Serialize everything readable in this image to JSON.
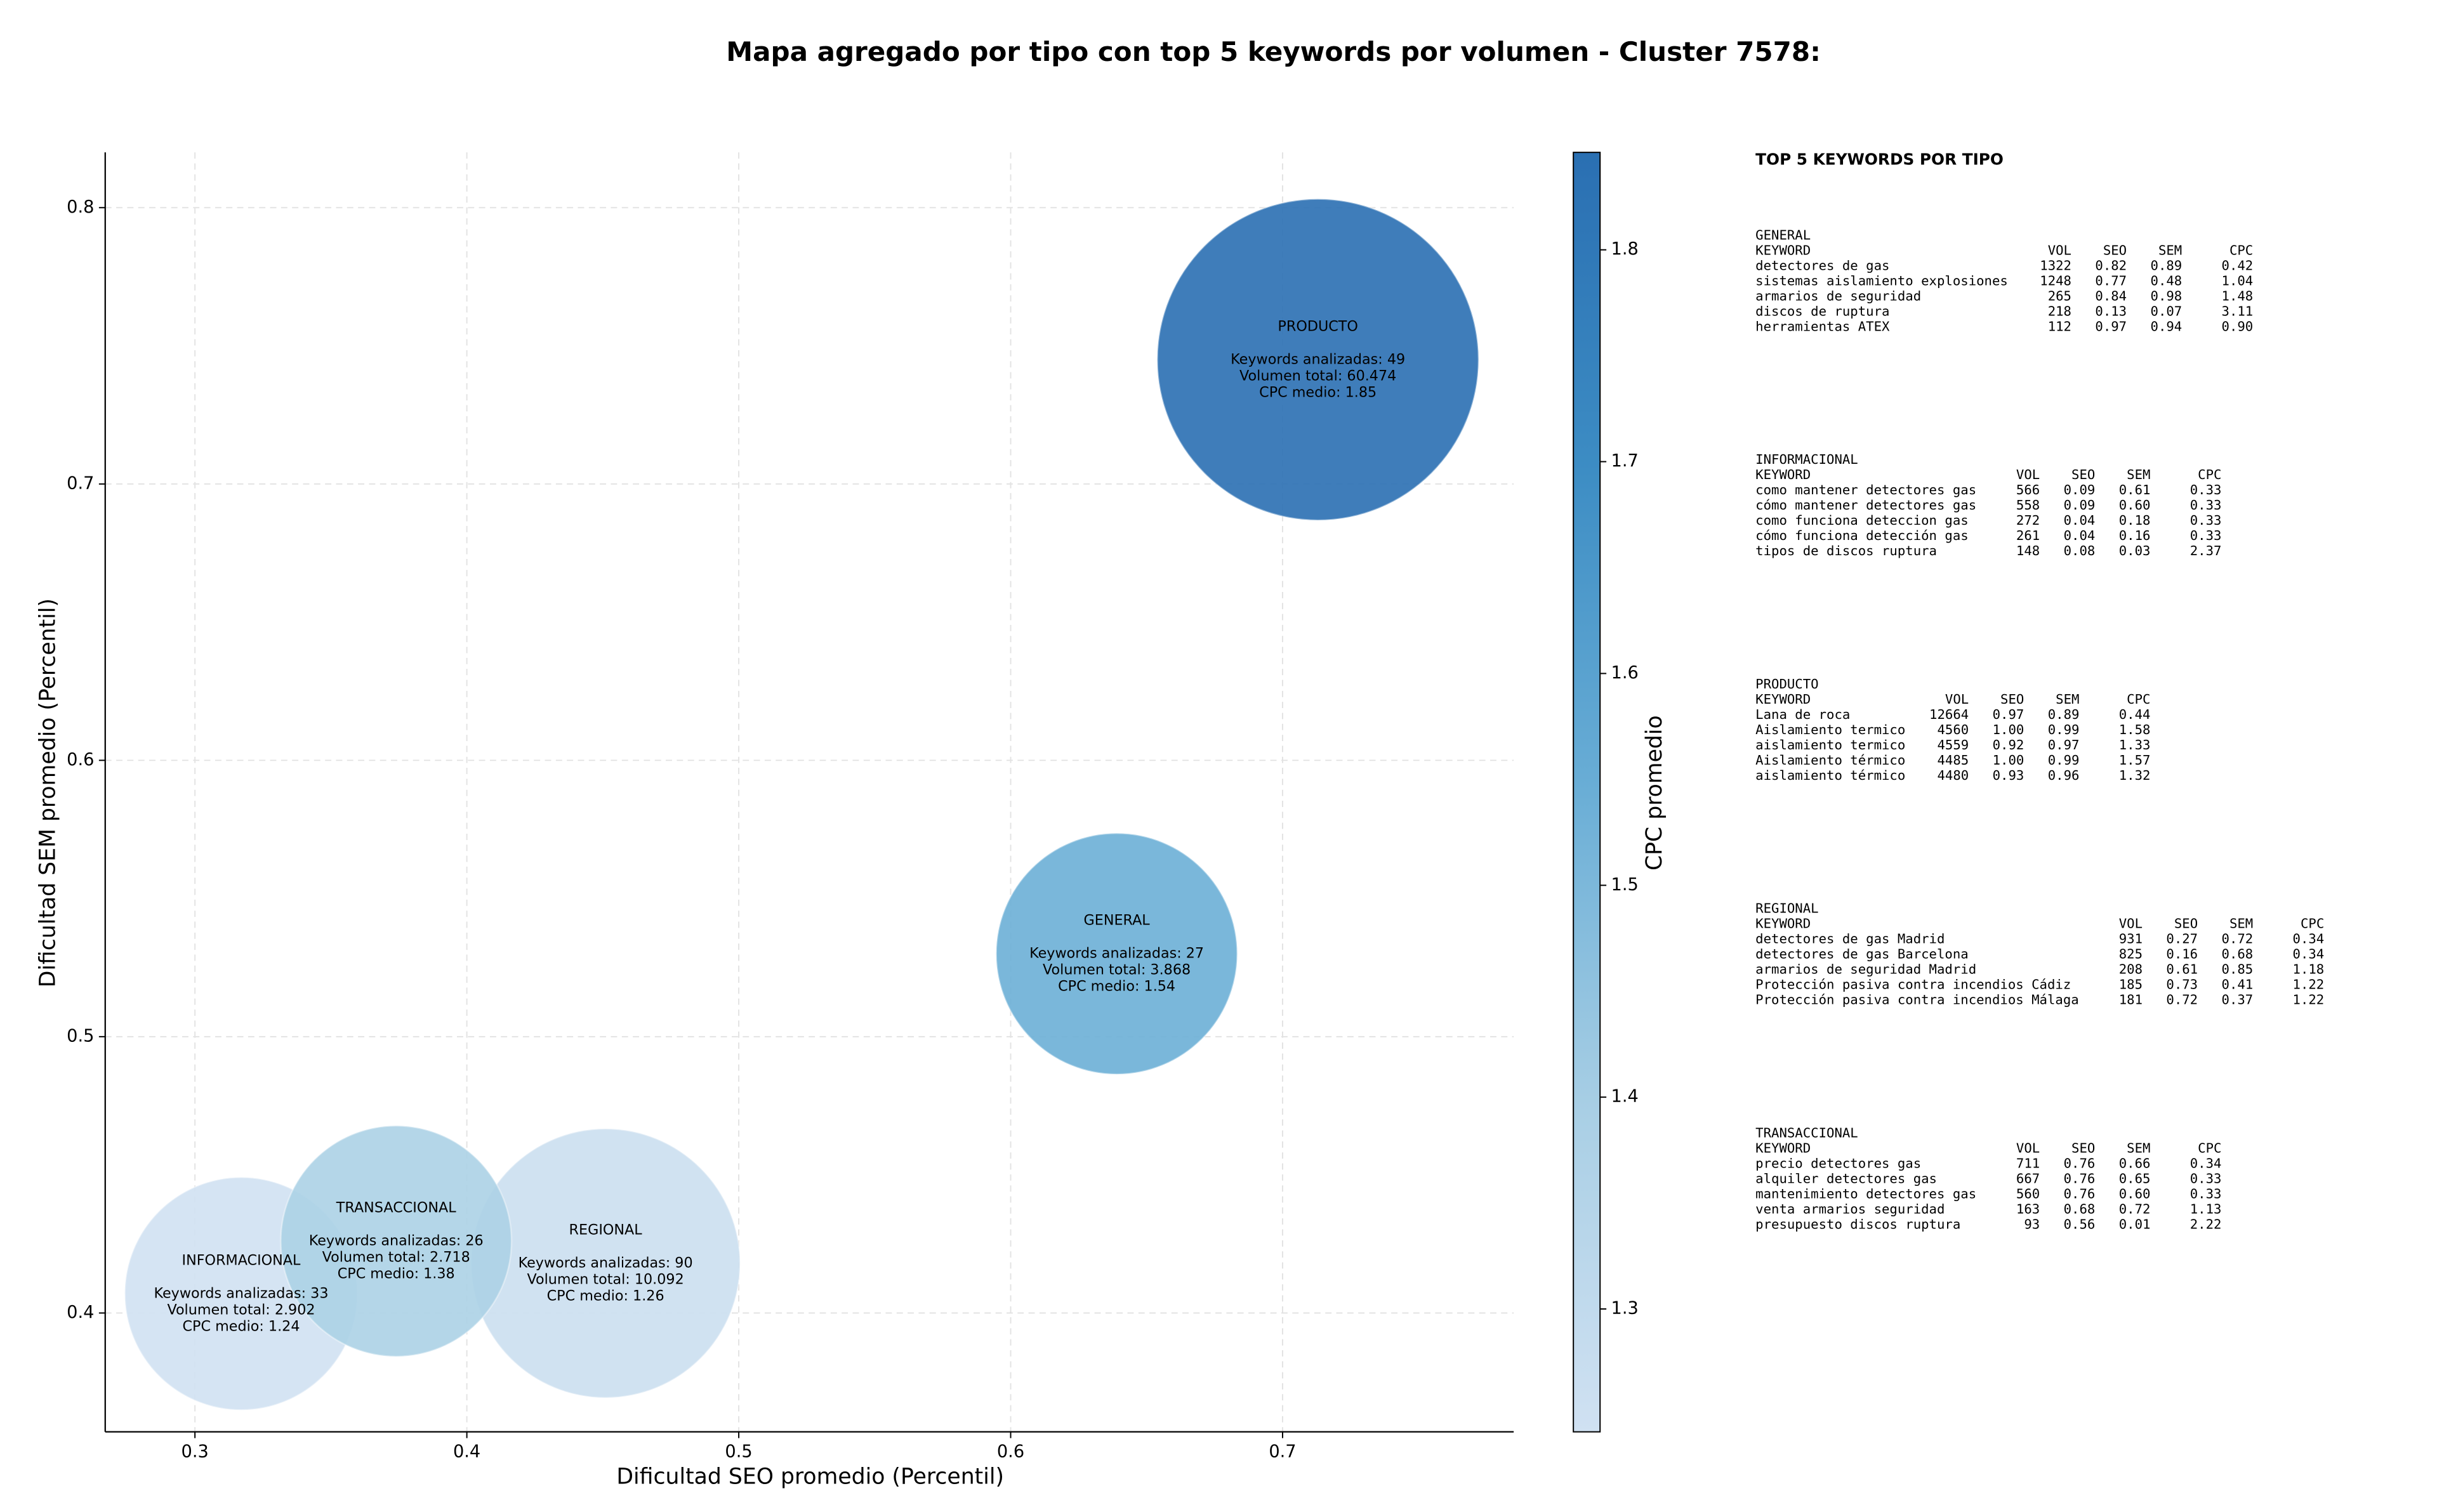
{
  "chart_data": {
    "type": "bubble",
    "title": "Mapa agregado por tipo con top 5 keywords por volumen - Cluster 7578:",
    "xlabel": "Dificultad SEO promedio (Percentil)",
    "ylabel": "Dificultad SEM promedio (Percentil)",
    "colorbar_label": "CPC promedio",
    "xlim": [
      0.267,
      0.785
    ],
    "xticks": [
      0.3,
      0.4,
      0.5,
      0.6,
      0.7
    ],
    "ylim": [
      0.357,
      0.82
    ],
    "yticks": [
      0.4,
      0.5,
      0.6,
      0.7,
      0.8
    ],
    "clim": [
      1.242,
      1.846
    ],
    "cticks": [
      1.3,
      1.4,
      1.5,
      1.6,
      1.7,
      1.8
    ],
    "colormap": [
      "#d0e1f2",
      "#a9cfe5",
      "#6aaed6",
      "#3d8dc4",
      "#2a6fb2"
    ],
    "grid": true,
    "series": [
      {
        "name": "GENERAL",
        "x": 0.639,
        "y": 0.53,
        "size": 3868,
        "cpc": 1.54,
        "labels": [
          "Keywords analizadas: 27",
          "Volumen total: 3.868",
          "CPC medio: 1.54"
        ]
      },
      {
        "name": "INFORMACIONAL",
        "x": 0.317,
        "y": 0.407,
        "size": 2902,
        "cpc": 1.24,
        "labels": [
          "Keywords analizadas: 33",
          "Volumen total: 2.902",
          "CPC medio: 1.24"
        ]
      },
      {
        "name": "PRODUCTO",
        "x": 0.713,
        "y": 0.745,
        "size": 60474,
        "cpc": 1.85,
        "labels": [
          "Keywords analizadas: 49",
          "Volumen total: 60.474",
          "CPC medio: 1.85"
        ]
      },
      {
        "name": "REGIONAL",
        "x": 0.451,
        "y": 0.418,
        "size": 10092,
        "cpc": 1.26,
        "labels": [
          "Keywords analizadas: 90",
          "Volumen total: 10.092",
          "CPC medio: 1.26"
        ]
      },
      {
        "name": "TRANSACCIONAL",
        "x": 0.374,
        "y": 0.426,
        "size": 2718,
        "cpc": 1.38,
        "labels": [
          "Keywords analizadas: 26",
          "Volumen total: 2.718",
          "CPC medio: 1.38"
        ]
      }
    ]
  },
  "panel": {
    "title": "TOP 5 KEYWORDS POR TIPO",
    "columns": [
      "KEYWORD",
      "VOL",
      "SEO",
      "SEM",
      "CPC"
    ],
    "groups": [
      {
        "name": "GENERAL",
        "rows": [
          [
            "detectores de gas",
            "1322",
            "0.82",
            "0.89",
            "0.42"
          ],
          [
            "sistemas aislamiento explosiones",
            "1248",
            "0.77",
            "0.48",
            "1.04"
          ],
          [
            "armarios de seguridad",
            "265",
            "0.84",
            "0.98",
            "1.48"
          ],
          [
            "discos de ruptura",
            "218",
            "0.13",
            "0.07",
            "3.11"
          ],
          [
            "herramientas ATEX",
            "112",
            "0.97",
            "0.94",
            "0.90"
          ]
        ]
      },
      {
        "name": "INFORMACIONAL",
        "rows": [
          [
            "como mantener detectores gas",
            "566",
            "0.09",
            "0.61",
            "0.33"
          ],
          [
            "cómo mantener detectores gas",
            "558",
            "0.09",
            "0.60",
            "0.33"
          ],
          [
            "como funciona deteccion gas",
            "272",
            "0.04",
            "0.18",
            "0.33"
          ],
          [
            "cómo funciona detección gas",
            "261",
            "0.04",
            "0.16",
            "0.33"
          ],
          [
            "tipos de discos ruptura",
            "148",
            "0.08",
            "0.03",
            "2.37"
          ]
        ]
      },
      {
        "name": "PRODUCTO",
        "rows": [
          [
            "Lana de roca",
            "12664",
            "0.97",
            "0.89",
            "0.44"
          ],
          [
            "Aislamiento termico",
            "4560",
            "1.00",
            "0.99",
            "1.58"
          ],
          [
            "aislamiento termico",
            "4559",
            "0.92",
            "0.97",
            "1.33"
          ],
          [
            "Aislamiento térmico",
            "4485",
            "1.00",
            "0.99",
            "1.57"
          ],
          [
            "aislamiento térmico",
            "4480",
            "0.93",
            "0.96",
            "1.32"
          ]
        ]
      },
      {
        "name": "REGIONAL",
        "rows": [
          [
            "detectores de gas Madrid",
            "931",
            "0.27",
            "0.72",
            "0.34"
          ],
          [
            "detectores de gas Barcelona",
            "825",
            "0.16",
            "0.68",
            "0.34"
          ],
          [
            "armarios de seguridad Madrid",
            "208",
            "0.61",
            "0.85",
            "1.18"
          ],
          [
            "Protección pasiva contra incendios Cádiz",
            "185",
            "0.73",
            "0.41",
            "1.22"
          ],
          [
            "Protección pasiva contra incendios Málaga",
            "181",
            "0.72",
            "0.37",
            "1.22"
          ]
        ]
      },
      {
        "name": "TRANSACCIONAL",
        "rows": [
          [
            "precio detectores gas",
            "711",
            "0.76",
            "0.66",
            "0.34"
          ],
          [
            "alquiler detectores gas",
            "667",
            "0.76",
            "0.65",
            "0.33"
          ],
          [
            "mantenimiento detectores gas",
            "560",
            "0.76",
            "0.60",
            "0.33"
          ],
          [
            "venta armarios seguridad",
            "163",
            "0.68",
            "0.72",
            "1.13"
          ],
          [
            "presupuesto discos ruptura",
            "93",
            "0.56",
            "0.01",
            "2.22"
          ]
        ]
      }
    ]
  }
}
